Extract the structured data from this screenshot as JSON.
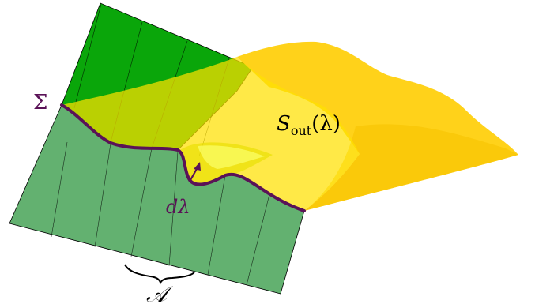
{
  "labels": {
    "sigma": "Σ",
    "s_out": "S",
    "s_out_sub": "out",
    "s_out_arg": "(λ)",
    "d_lambda": "dλ",
    "area": "𝒜"
  },
  "colors": {
    "plane_upper": "#0aa60a",
    "plane_lower": "#63b170",
    "surface": "#ffd21a",
    "surface_translucent": "#ffe100",
    "curve": "#5a1257",
    "label_curve": "#5a1257",
    "text": "#000000"
  }
}
